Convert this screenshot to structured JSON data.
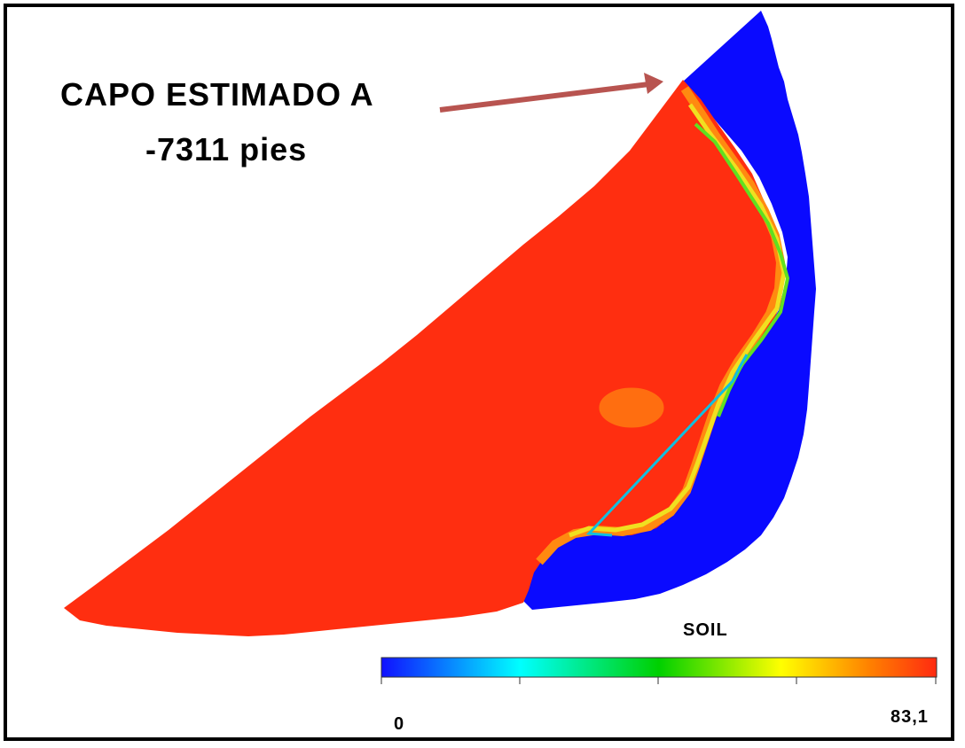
{
  "annotation": {
    "line1": "CAPO ESTIMADO A",
    "line2": "-7311 pies",
    "arrow_color": "#b85450"
  },
  "legend": {
    "title": "SOIL",
    "min_label": "0",
    "max_label": "83,1",
    "gradient_colors": [
      "#1010ff",
      "#00ffff",
      "#00d000",
      "#ffff00",
      "#ff8000",
      "#ff2a10"
    ]
  },
  "map_colors": {
    "oil_zone": "#ff2e10",
    "water_zone": "#0a0aff",
    "transition_orange": "#ff8a10",
    "transition_yellow": "#f0e020",
    "transition_green": "#60e020",
    "transition_cyan": "#10c0e0",
    "frame": "#000000"
  }
}
